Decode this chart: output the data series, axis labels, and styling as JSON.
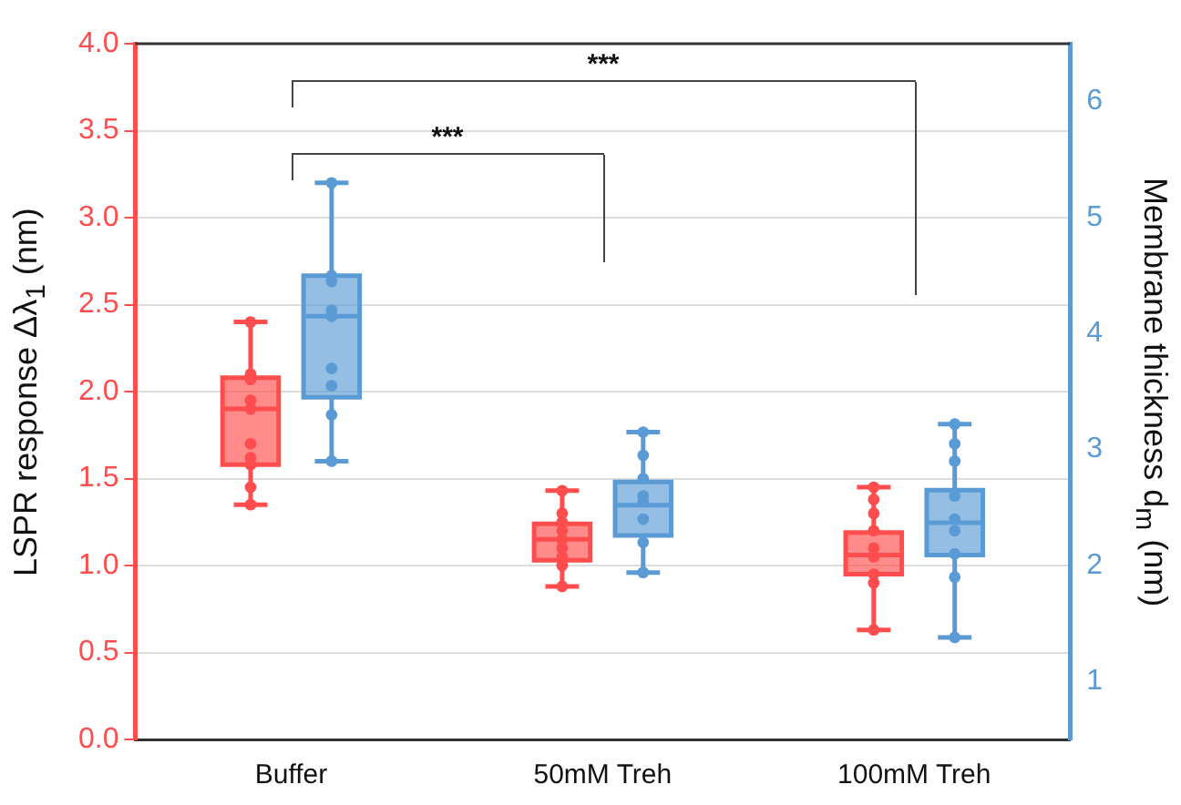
{
  "chart_data": {
    "type": "box",
    "ylabel": "LSPR response Δλ$_{1}$ (nm)",
    "y2label": "Membrane thickness d$_{m}$ (nm)",
    "categories": [
      "Buffer",
      "50mM Treh",
      "100mM Treh"
    ],
    "ylim": [
      0,
      4
    ],
    "yticks": [
      {
        "value": 0,
        "label": "0.0"
      },
      0.5,
      {
        "value": 1,
        "label": "1.0"
      },
      1.5,
      {
        "value": 2,
        "label": "2.0"
      },
      2.5,
      {
        "value": 3,
        "label": "3.0"
      },
      3.5,
      {
        "value": 4,
        "label": "4.0"
      }
    ],
    "y2lim": [
      0.5,
      6.5
    ],
    "y2ticks": [
      1,
      2,
      3,
      4,
      5,
      6
    ],
    "grid": "y",
    "annotations": [
      "***",
      "***"
    ],
    "series": [
      {
        "color": "#ff4d4d",
        "boxes": [
          {
            "low": 1.35,
            "q1": 1.58,
            "median": 1.9,
            "q3": 2.08,
            "high": 2.4
          },
          {
            "low": 0.88,
            "q1": 1.03,
            "median": 1.15,
            "q3": 1.24,
            "high": 1.43
          },
          {
            "low": 0.63,
            "q1": 0.95,
            "median": 1.06,
            "q3": 1.19,
            "high": 1.45
          }
        ]
      },
      {
        "color": "#5b9bd5",
        "axis": "y2",
        "boxes": [
          {
            "low": 2.9,
            "q1": 3.45,
            "median": 4.15,
            "q3": 4.5,
            "high": 5.3
          },
          {
            "low": 1.94,
            "q1": 2.26,
            "median": 2.52,
            "q3": 2.72,
            "high": 3.15
          },
          {
            "low": 1.38,
            "q1": 2.09,
            "median": 2.37,
            "q3": 2.65,
            "high": 3.22
          }
        ]
      },
      {
        "type": "scatter",
        "color": "#ff4d4d",
        "x": [
          "Buffer",
          "Buffer",
          "Buffer",
          "Buffer",
          "Buffer",
          "Buffer",
          "Buffer",
          "Buffer",
          "Buffer",
          "Buffer",
          "50mM Treh",
          "50mM Treh",
          "50mM Treh",
          "50mM Treh",
          "50mM Treh",
          "50mM Treh",
          "50mM Treh",
          "50mM Treh",
          "50mM Treh",
          "100mM Treh",
          "100mM Treh",
          "100mM Treh",
          "100mM Treh",
          "100mM Treh",
          "100mM Treh",
          "100mM Treh",
          "100mM Treh",
          "100mM Treh"
        ],
        "values": [
          2.4,
          2.1,
          2.07,
          1.95,
          1.9,
          1.7,
          1.62,
          1.58,
          1.45,
          1.35,
          1.43,
          1.3,
          1.25,
          1.2,
          1.15,
          1.1,
          1.05,
          1.0,
          0.88,
          1.45,
          1.38,
          1.3,
          1.2,
          1.1,
          1.05,
          0.95,
          0.9,
          0.63
        ]
      },
      {
        "type": "scatter",
        "color": "#5b9bd5",
        "axis": "y2",
        "x": [
          "Buffer",
          "Buffer",
          "Buffer",
          "Buffer",
          "Buffer",
          "Buffer",
          "Buffer",
          "Buffer",
          "Buffer",
          "50mM Treh",
          "50mM Treh",
          "50mM Treh",
          "50mM Treh",
          "50mM Treh",
          "50mM Treh",
          "50mM Treh",
          "50mM Treh",
          "100mM Treh",
          "100mM Treh",
          "100mM Treh",
          "100mM Treh",
          "100mM Treh",
          "100mM Treh",
          "100mM Treh",
          "100mM Treh",
          "100mM Treh"
        ],
        "values": [
          5.3,
          4.5,
          4.45,
          4.2,
          4.15,
          3.7,
          3.55,
          3.3,
          2.9,
          3.15,
          2.95,
          2.75,
          2.6,
          2.55,
          2.4,
          2.2,
          1.94,
          3.22,
          3.05,
          2.9,
          2.6,
          2.4,
          2.3,
          2.1,
          1.9,
          1.38
        ]
      }
    ]
  }
}
